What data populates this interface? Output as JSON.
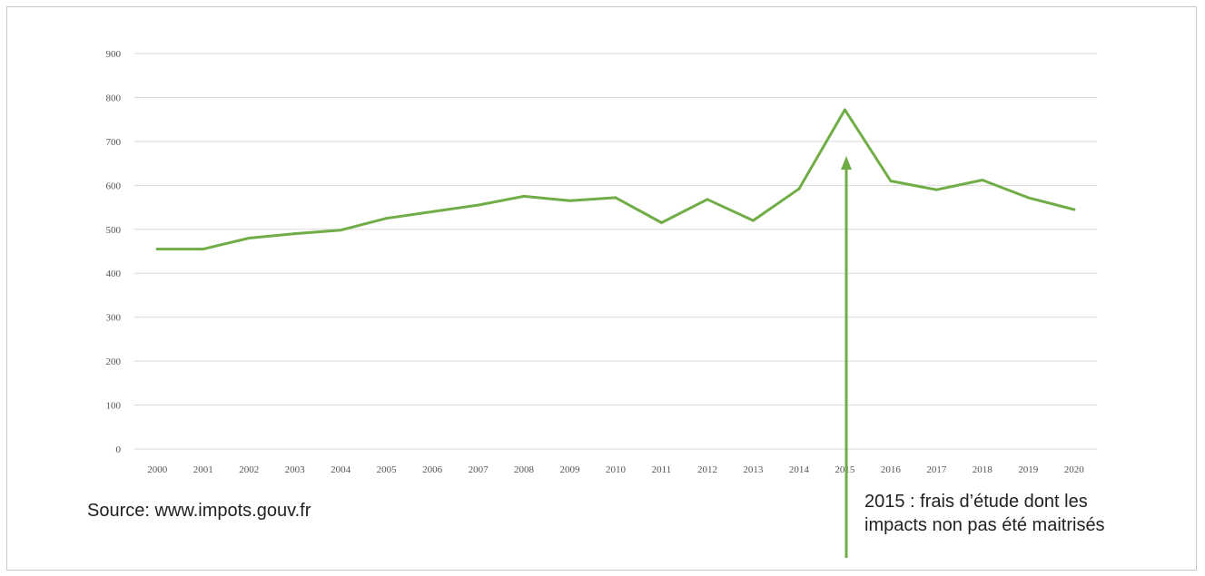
{
  "chart_data": {
    "type": "line",
    "title": "",
    "xlabel": "",
    "ylabel": "",
    "categories": [
      "2000",
      "2001",
      "2002",
      "2003",
      "2004",
      "2005",
      "2006",
      "2007",
      "2008",
      "2009",
      "2010",
      "2011",
      "2012",
      "2013",
      "2014",
      "2015",
      "2016",
      "2017",
      "2018",
      "2019",
      "2020"
    ],
    "series": [
      {
        "values": [
          455,
          455,
          480,
          490,
          498,
          525,
          540,
          555,
          575,
          565,
          572,
          515,
          568,
          520,
          592,
          772,
          610,
          590,
          612,
          572,
          545
        ]
      }
    ],
    "ylim": [
      0,
      900
    ],
    "yticks": [
      0,
      100,
      200,
      300,
      400,
      500,
      600,
      700,
      800,
      900
    ],
    "grid": true,
    "legend": "none",
    "line_color": "#70ad47",
    "annotation": {
      "category": "2015",
      "text": "2015 : frais d’étude dont les impacts non pas été maitrisés",
      "arrow_color": "#70ad47"
    }
  },
  "source_text": "Source: www.impots.gouv.fr"
}
